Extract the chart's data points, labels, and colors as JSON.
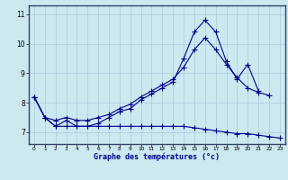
{
  "xlabel": "Graphe des températures (°c)",
  "hours": [
    0,
    1,
    2,
    3,
    4,
    5,
    6,
    7,
    8,
    9,
    10,
    11,
    12,
    13,
    14,
    15,
    16,
    17,
    18,
    19,
    20,
    21,
    22,
    23
  ],
  "line1": [
    8.2,
    7.5,
    7.2,
    7.4,
    7.2,
    7.2,
    7.3,
    7.5,
    7.7,
    7.8,
    8.1,
    8.3,
    8.5,
    8.7,
    9.5,
    10.4,
    10.8,
    10.4,
    9.4,
    8.8,
    9.3,
    8.4,
    null,
    null
  ],
  "line2": [
    8.2,
    7.5,
    7.4,
    7.5,
    7.4,
    7.4,
    7.5,
    7.6,
    7.8,
    7.95,
    8.2,
    8.4,
    8.6,
    8.8,
    9.2,
    9.8,
    10.2,
    9.8,
    9.3,
    8.85,
    8.5,
    8.35,
    8.25,
    null
  ],
  "dew_line": [
    8.2,
    7.5,
    7.2,
    7.2,
    7.2,
    7.2,
    7.2,
    7.2,
    7.2,
    7.2,
    7.2,
    7.2,
    7.2,
    7.2,
    7.2,
    7.15,
    7.1,
    7.05,
    7.0,
    6.95,
    6.95,
    6.9,
    6.85,
    6.8
  ],
  "bg_color": "#cce9f0",
  "line_color": "#00008b",
  "grid_color": "#aaccdd",
  "marker": "+",
  "markersize": 4,
  "linewidth": 0.8,
  "ylim": [
    6.6,
    11.3
  ],
  "xlim": [
    -0.5,
    23.5
  ],
  "yticks": [
    7,
    8,
    9,
    10,
    11
  ],
  "xticks": [
    0,
    1,
    2,
    3,
    4,
    5,
    6,
    7,
    8,
    9,
    10,
    11,
    12,
    13,
    14,
    15,
    16,
    17,
    18,
    19,
    20,
    21,
    22,
    23
  ]
}
